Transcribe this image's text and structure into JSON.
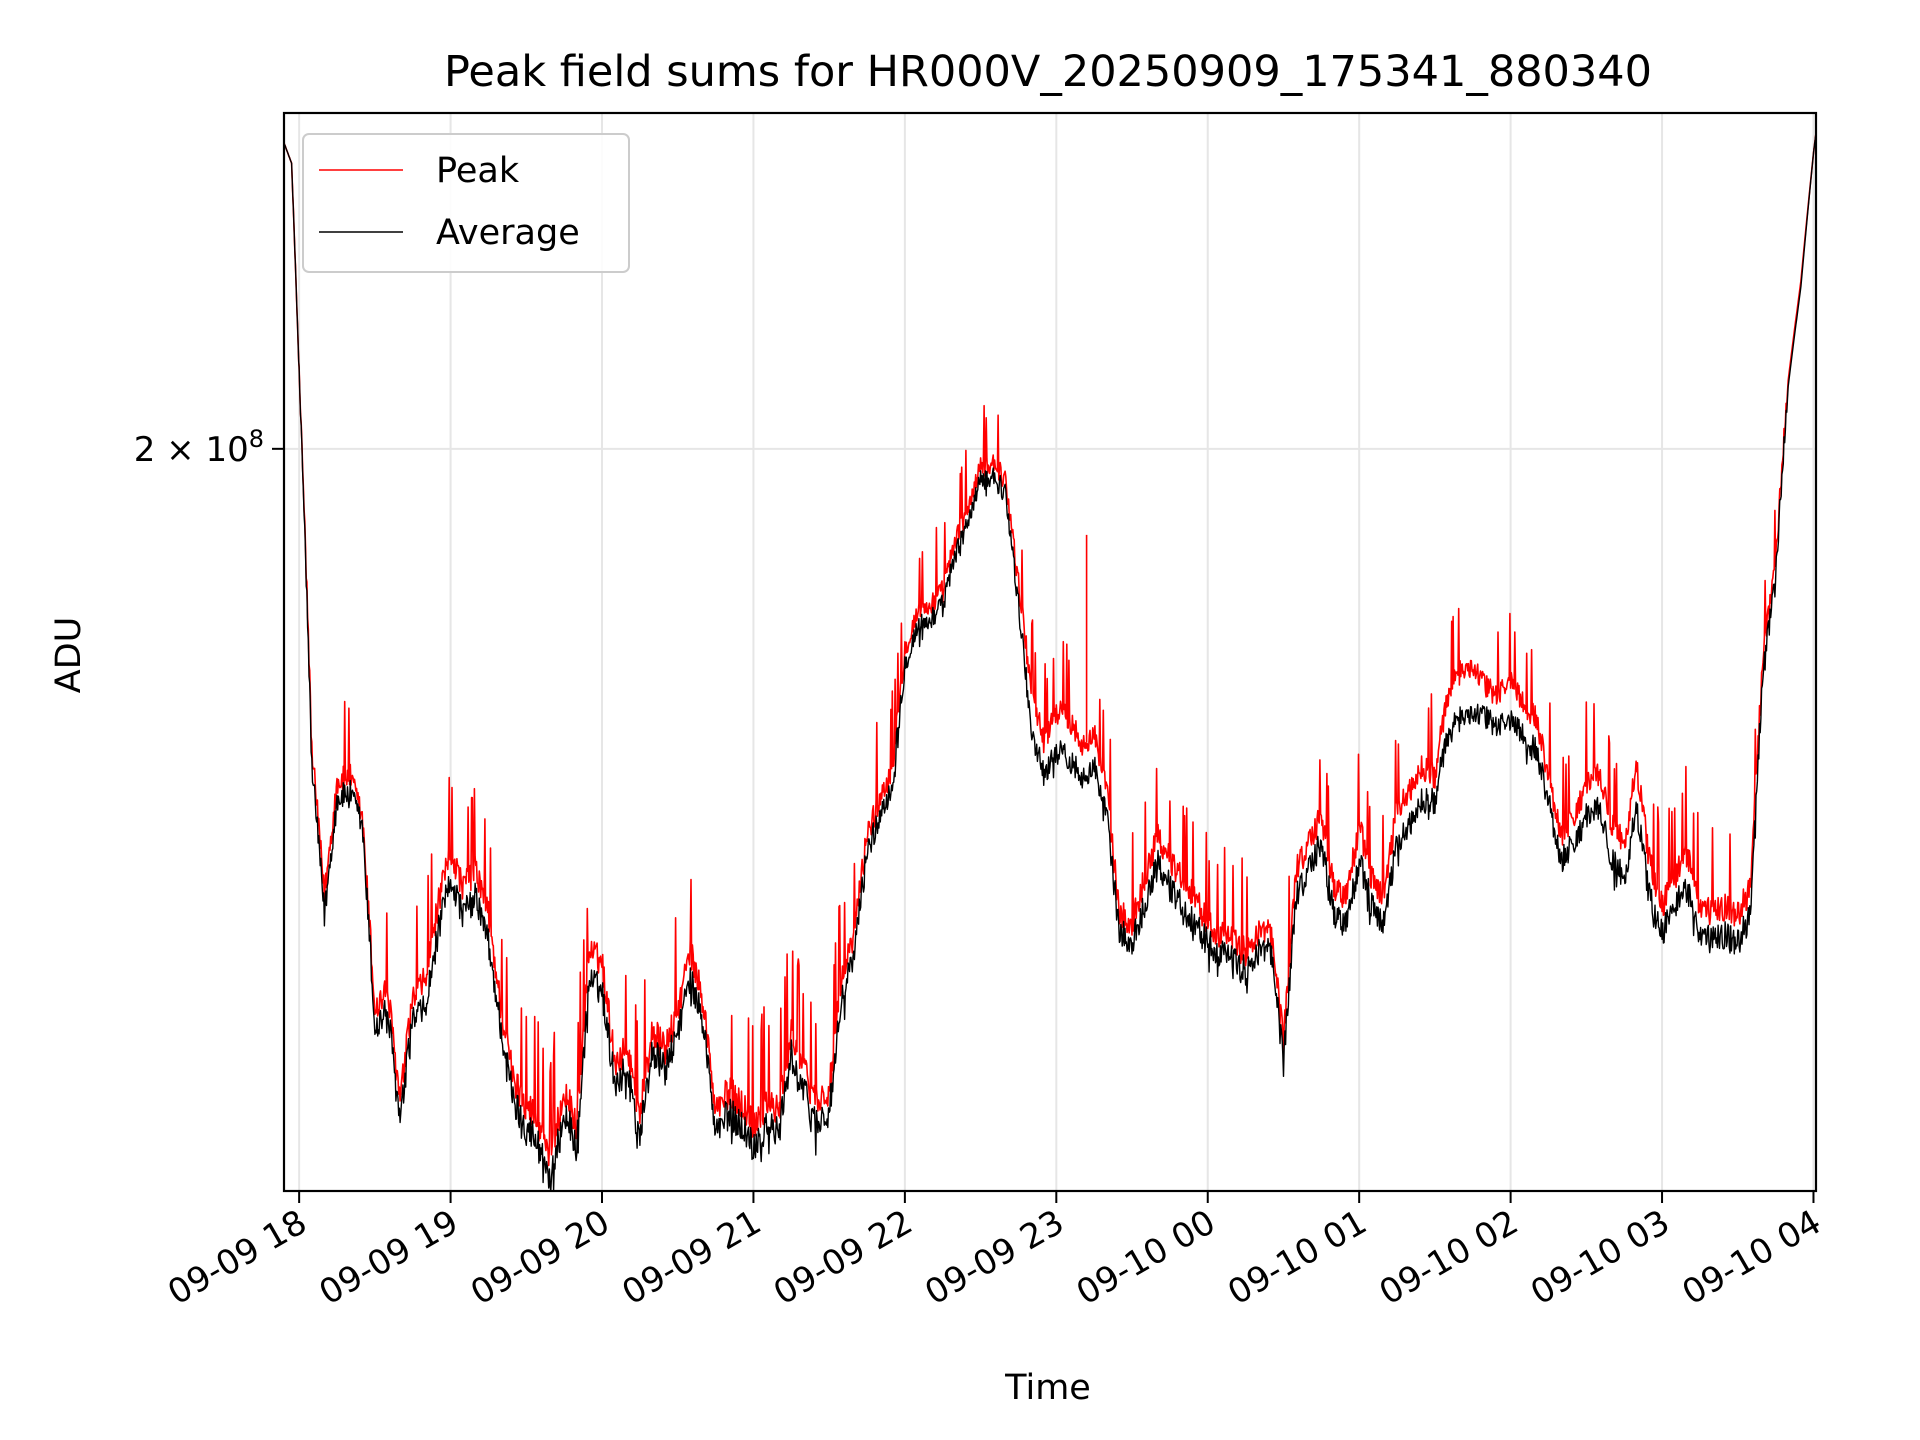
{
  "chart_data": {
    "type": "line",
    "title": "Peak field sums for HR000V_20250909_175341_880340",
    "xlabel": "Time",
    "ylabel": "ADU",
    "yscale": "log",
    "ylim": [
      112000000,
      260000000
    ],
    "yticks": [
      {
        "value": 200000000,
        "label": "2 × 10",
        "exponent": "8"
      }
    ],
    "xlim": [
      "2025-09-09 17:54",
      "2025-09-10 04:01"
    ],
    "xticks": [
      {
        "value": "2025-09-09 18:00",
        "label": "09-09 18"
      },
      {
        "value": "2025-09-09 19:00",
        "label": "09-09 19"
      },
      {
        "value": "2025-09-09 20:00",
        "label": "09-09 20"
      },
      {
        "value": "2025-09-09 21:00",
        "label": "09-09 21"
      },
      {
        "value": "2025-09-09 22:00",
        "label": "09-09 22"
      },
      {
        "value": "2025-09-09 23:00",
        "label": "09-09 23"
      },
      {
        "value": "2025-09-10 00:00",
        "label": "09-10 00"
      },
      {
        "value": "2025-09-10 01:00",
        "label": "09-10 01"
      },
      {
        "value": "2025-09-10 02:00",
        "label": "09-10 02"
      },
      {
        "value": "2025-09-10 03:00",
        "label": "09-10 03"
      },
      {
        "value": "2025-09-10 04:00",
        "label": "09-10 04"
      }
    ],
    "grid": true,
    "legend": {
      "position": "upper-left"
    },
    "x": [
      "2025-09-09 17:54",
      "2025-09-09 17:57",
      "2025-09-09 18:00",
      "2025-09-09 18:05",
      "2025-09-09 18:10",
      "2025-09-09 18:15",
      "2025-09-09 18:20",
      "2025-09-09 18:25",
      "2025-09-09 18:30",
      "2025-09-09 18:35",
      "2025-09-09 18:40",
      "2025-09-09 18:45",
      "2025-09-09 18:50",
      "2025-09-09 18:55",
      "2025-09-09 19:00",
      "2025-09-09 19:05",
      "2025-09-09 19:10",
      "2025-09-09 19:15",
      "2025-09-09 19:20",
      "2025-09-09 19:25",
      "2025-09-09 19:30",
      "2025-09-09 19:35",
      "2025-09-09 19:40",
      "2025-09-09 19:45",
      "2025-09-09 19:50",
      "2025-09-09 19:55",
      "2025-09-09 20:00",
      "2025-09-09 20:05",
      "2025-09-09 20:10",
      "2025-09-09 20:15",
      "2025-09-09 20:20",
      "2025-09-09 20:25",
      "2025-09-09 20:30",
      "2025-09-09 20:35",
      "2025-09-09 20:40",
      "2025-09-09 20:45",
      "2025-09-09 20:50",
      "2025-09-09 20:55",
      "2025-09-09 21:00",
      "2025-09-09 21:05",
      "2025-09-09 21:10",
      "2025-09-09 21:15",
      "2025-09-09 21:20",
      "2025-09-09 21:25",
      "2025-09-09 21:30",
      "2025-09-09 21:35",
      "2025-09-09 21:40",
      "2025-09-09 21:45",
      "2025-09-09 21:50",
      "2025-09-09 21:55",
      "2025-09-09 22:00",
      "2025-09-09 22:05",
      "2025-09-09 22:10",
      "2025-09-09 22:15",
      "2025-09-09 22:20",
      "2025-09-09 22:25",
      "2025-09-09 22:30",
      "2025-09-09 22:35",
      "2025-09-09 22:40",
      "2025-09-09 22:45",
      "2025-09-09 22:50",
      "2025-09-09 22:55",
      "2025-09-09 23:00",
      "2025-09-09 23:05",
      "2025-09-09 23:10",
      "2025-09-09 23:15",
      "2025-09-09 23:20",
      "2025-09-09 23:25",
      "2025-09-09 23:30",
      "2025-09-09 23:35",
      "2025-09-09 23:40",
      "2025-09-09 23:45",
      "2025-09-09 23:50",
      "2025-09-09 23:55",
      "2025-09-10 00:00",
      "2025-09-10 00:05",
      "2025-09-10 00:10",
      "2025-09-10 00:15",
      "2025-09-10 00:20",
      "2025-09-10 00:25",
      "2025-09-10 00:30",
      "2025-09-10 00:35",
      "2025-09-10 00:40",
      "2025-09-10 00:45",
      "2025-09-10 00:50",
      "2025-09-10 00:55",
      "2025-09-10 01:00",
      "2025-09-10 01:05",
      "2025-09-10 01:10",
      "2025-09-10 01:15",
      "2025-09-10 01:20",
      "2025-09-10 01:25",
      "2025-09-10 01:30",
      "2025-09-10 01:35",
      "2025-09-10 01:40",
      "2025-09-10 01:45",
      "2025-09-10 01:50",
      "2025-09-10 01:55",
      "2025-09-10 02:00",
      "2025-09-10 02:05",
      "2025-09-10 02:10",
      "2025-09-10 02:15",
      "2025-09-10 02:20",
      "2025-09-10 02:25",
      "2025-09-10 02:30",
      "2025-09-10 02:35",
      "2025-09-10 02:40",
      "2025-09-10 02:45",
      "2025-09-10 02:50",
      "2025-09-10 02:55",
      "2025-09-10 03:00",
      "2025-09-10 03:05",
      "2025-09-10 03:10",
      "2025-09-10 03:15",
      "2025-09-10 03:20",
      "2025-09-10 03:25",
      "2025-09-10 03:30",
      "2025-09-10 03:35",
      "2025-09-10 03:40",
      "2025-09-10 03:45",
      "2025-09-10 03:50",
      "2025-09-10 03:55",
      "2025-09-10 04:00",
      "2025-09-10 04:01"
    ],
    "series": [
      {
        "name": "Peak",
        "color": "#ff0000",
        "values": [
          254,
          250,
          212,
          158,
          141,
          154,
          155,
          150,
          129,
          131,
          120,
          130,
          132,
          140,
          146,
          142,
          144,
          139,
          129,
          122,
          120,
          118,
          115,
          121,
          118,
          135,
          134,
          124,
          125,
          119,
          127,
          125,
          129,
          135,
          130,
          119,
          121,
          120,
          118,
          120,
          119,
          127,
          123,
          120,
          121,
          132,
          137,
          148,
          152,
          156,
          171,
          176,
          177,
          179,
          186,
          191,
          197,
          198,
          195,
          180,
          166,
          159,
          163,
          162,
          159,
          160,
          153,
          139,
          138,
          143,
          148,
          145,
          143,
          141,
          138,
          137,
          136,
          135,
          137,
          137,
          126,
          144,
          147,
          150,
          142,
          141,
          149,
          143,
          141,
          151,
          153,
          156,
          155,
          165,
          168,
          169,
          166,
          165,
          167,
          164,
          162,
          155,
          148,
          150,
          154,
          155,
          149,
          147,
          156,
          145,
          140,
          143,
          146,
          140,
          139,
          140,
          139,
          142,
          170,
          183,
          211,
          228,
          252,
          256
        ],
        "spikes": [
          {
            "x": "2025-09-09 23:12",
            "value": 187
          }
        ]
      },
      {
        "name": "Average",
        "color": "#000000",
        "values": [
          254,
          250,
          212,
          156,
          139,
          152,
          153,
          149,
          127,
          129,
          118,
          128,
          129,
          137,
          143,
          139,
          141,
          136,
          127,
          120,
          118,
          116,
          113,
          119,
          116,
          132,
          131,
          122,
          123,
          117,
          125,
          123,
          127,
          132,
          128,
          117,
          119,
          118,
          116,
          118,
          117,
          125,
          121,
          118,
          119,
          130,
          135,
          146,
          150,
          154,
          169,
          174,
          175,
          177,
          184,
          189,
          195,
          196,
          193,
          177,
          161,
          155,
          158,
          157,
          155,
          156,
          150,
          137,
          136,
          140,
          145,
          142,
          140,
          138,
          136,
          135,
          134,
          133,
          135,
          135,
          124,
          141,
          144,
          147,
          139,
          138,
          145,
          140,
          138,
          147,
          149,
          152,
          152,
          160,
          162,
          163,
          162,
          161,
          162,
          160,
          158,
          152,
          145,
          147,
          150,
          151,
          145,
          143,
          151,
          141,
          137,
          140,
          142,
          137,
          136,
          137,
          136,
          139,
          168,
          181,
          210,
          227,
          252,
          256
        ]
      }
    ],
    "value_unit_multiplier": 1000000
  }
}
